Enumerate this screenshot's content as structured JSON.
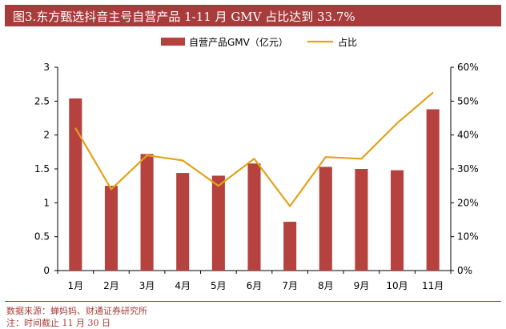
{
  "title": "图3.东方甄选抖音主号自营产品 1-11 月 GMV 占比达到 33.7%",
  "colors": {
    "accent": "#a83c3c",
    "bar": "#b5423e",
    "line": "#e3a21a"
  },
  "chart_data": {
    "type": "bar",
    "categories": [
      "1月",
      "2月",
      "3月",
      "4月",
      "5月",
      "6月",
      "7月",
      "8月",
      "9月",
      "10月",
      "11月"
    ],
    "series": [
      {
        "name": "自营产品GMV（亿元）",
        "type": "bar",
        "axis": "left",
        "values": [
          2.54,
          1.25,
          1.72,
          1.44,
          1.4,
          1.58,
          0.72,
          1.53,
          1.5,
          1.48,
          2.38
        ]
      },
      {
        "name": "占比",
        "type": "line",
        "axis": "right",
        "values": [
          42.0,
          24.0,
          34.0,
          32.5,
          25.0,
          33.0,
          19.0,
          33.5,
          33.0,
          43.5,
          52.5
        ]
      }
    ],
    "y_left": {
      "ylim": [
        0,
        3
      ],
      "ticks": [
        "0",
        "0.5",
        "1",
        "1.5",
        "2",
        "2.5",
        "3"
      ]
    },
    "y_right": {
      "ylim": [
        0,
        60
      ],
      "ticks": [
        "0%",
        "10%",
        "20%",
        "30%",
        "40%",
        "50%",
        "60%"
      ]
    },
    "legend_position": "top-center",
    "grid": false
  },
  "footer": {
    "source": "数据来源：蝉妈妈、财通证券研究所",
    "note": "注：时间截止 11 月 30 日"
  }
}
